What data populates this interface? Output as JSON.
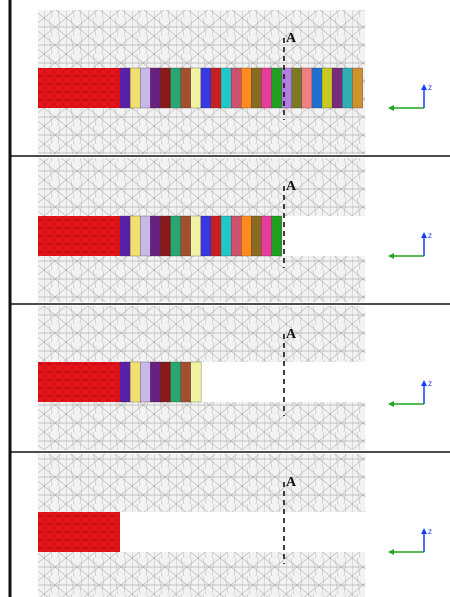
{
  "figure": {
    "panel_count": 4,
    "section_label": "A",
    "axis_label": "z",
    "colors": {
      "mesh_line": "#8a8a8a",
      "mesh_fill": "#f2f2f2",
      "frame": "#111111",
      "initial_block": "#e8141b",
      "axis_z": "#1a3cff",
      "axis_y": "#1fa51f",
      "dash_line": "#111111"
    },
    "layers": [
      "#5a1fa8",
      "#f0e070",
      "#c8b8e8",
      "#6a2080",
      "#8a1a1a",
      "#28a870",
      "#a05030",
      "#f2f2a0",
      "#3838e0",
      "#c82020",
      "#20c8c8",
      "#d05070",
      "#ff8a20",
      "#8a6a20",
      "#e83c9c",
      "#20a020",
      "#b080e0",
      "#7a7a20",
      "#f08080",
      "#2070d0",
      "#c8c820",
      "#7a2a7a",
      "#30b0b0",
      "#d09030"
    ]
  }
}
